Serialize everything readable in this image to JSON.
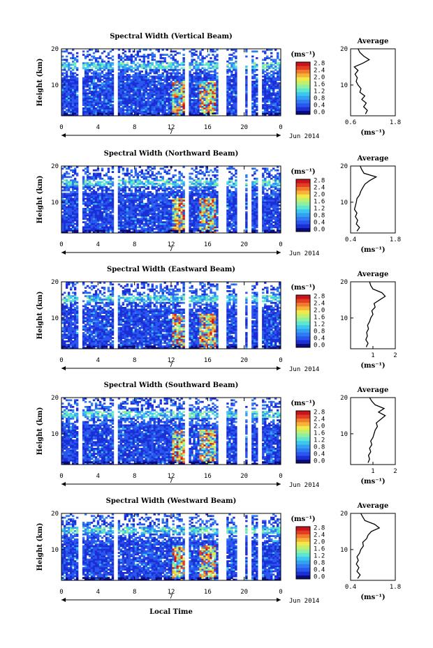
{
  "figure": {
    "xlabel": "Local Time",
    "date_label": "Jun 2014",
    "day_label": "7",
    "cbar_unit": "(ms⁻¹)",
    "avg_title": "Average",
    "avg_xlabel": "(ms⁻¹)",
    "ylabel": "Height (km)"
  },
  "colors": {
    "scale": [
      "#0b0b7a",
      "#1b2fd6",
      "#2a56ee",
      "#2f7bf3",
      "#35a0f2",
      "#3cc7ee",
      "#5ee6d0",
      "#8ef0a0",
      "#c3f06c",
      "#f1e84a",
      "#f7b23a",
      "#f17a2c",
      "#e23e24",
      "#c9141c"
    ]
  },
  "chart_data": [
    {
      "type": "heatmap",
      "title": "Spectral Width (Vertical Beam)",
      "x_ticks": [
        "0",
        "4",
        "8",
        "12",
        "16",
        "20",
        "0"
      ],
      "xlim": [
        0,
        24
      ],
      "y_ticks": [
        "10",
        "20"
      ],
      "ylim": [
        1.5,
        20
      ],
      "cbar_ticks": [
        "0.0",
        "0.4",
        "0.8",
        "1.2",
        "1.6",
        "2.0",
        "2.4",
        "2.8"
      ],
      "gaps_hours": [
        [
          1.9,
          2.3
        ],
        [
          5.7,
          6.1
        ],
        [
          13.6,
          14.0
        ],
        [
          17.1,
          18.0
        ],
        [
          19.2,
          20.0
        ],
        [
          20.4,
          20.7
        ],
        [
          21.6,
          22.0
        ]
      ],
      "hot_hours": [
        [
          12.2,
          13.5
        ],
        [
          15.2,
          16.8
        ]
      ],
      "avg_profile": {
        "xlim": [
          0.6,
          1.8
        ],
        "x_ticks": [
          "0.6",
          "1.8"
        ],
        "height_km": [
          2,
          3,
          4,
          5,
          6,
          7,
          8,
          9,
          10,
          11,
          12,
          13,
          14,
          15,
          16,
          17,
          18,
          19,
          20
        ],
        "values": [
          1.0,
          1.05,
          0.95,
          1.02,
          0.9,
          0.98,
          0.85,
          0.88,
          0.8,
          0.75,
          0.78,
          0.72,
          0.8,
          0.7,
          0.92,
          1.1,
          0.95,
          0.85,
          0.8
        ]
      }
    },
    {
      "type": "heatmap",
      "title": "Spectral Width (Northward Beam)",
      "x_ticks": [
        "0",
        "4",
        "8",
        "12",
        "16",
        "20",
        "0"
      ],
      "xlim": [
        0,
        24
      ],
      "y_ticks": [
        "10",
        "20"
      ],
      "ylim": [
        1.5,
        20
      ],
      "cbar_ticks": [
        "0.0",
        "0.4",
        "0.8",
        "1.2",
        "1.6",
        "2.0",
        "2.4",
        "2.8"
      ],
      "gaps_hours": [
        [
          1.9,
          2.3
        ],
        [
          5.7,
          6.1
        ],
        [
          13.6,
          14.0
        ],
        [
          17.1,
          18.0
        ],
        [
          19.2,
          20.0
        ],
        [
          20.4,
          20.7
        ],
        [
          21.6,
          22.0
        ]
      ],
      "hot_hours": [
        [
          12.2,
          13.5
        ],
        [
          15.2,
          16.8
        ]
      ],
      "avg_profile": {
        "xlim": [
          0.4,
          1.8
        ],
        "x_ticks": [
          "0.4",
          "1.8"
        ],
        "height_km": [
          2,
          3,
          4,
          5,
          6,
          7,
          8,
          9,
          10,
          11,
          12,
          13,
          14,
          15,
          16,
          17,
          18,
          19,
          20
        ],
        "values": [
          0.6,
          0.68,
          0.58,
          0.62,
          0.55,
          0.6,
          0.52,
          0.55,
          0.58,
          0.6,
          0.68,
          0.72,
          0.78,
          0.85,
          1.0,
          1.2,
          0.82,
          0.75,
          0.7
        ]
      }
    },
    {
      "type": "heatmap",
      "title": "Spectral Width (Eastward Beam)",
      "x_ticks": [
        "0",
        "4",
        "8",
        "12",
        "16",
        "20",
        "0"
      ],
      "xlim": [
        0,
        24
      ],
      "y_ticks": [
        "10",
        "20"
      ],
      "ylim": [
        1.5,
        20
      ],
      "cbar_ticks": [
        "0.0",
        "0.4",
        "0.8",
        "1.2",
        "1.6",
        "2.0",
        "2.4",
        "2.8"
      ],
      "gaps_hours": [
        [
          1.9,
          2.3
        ],
        [
          5.7,
          6.1
        ],
        [
          13.6,
          14.0
        ],
        [
          17.1,
          18.0
        ],
        [
          19.2,
          20.0
        ],
        [
          20.4,
          20.7
        ],
        [
          21.6,
          22.0
        ]
      ],
      "hot_hours": [
        [
          12.2,
          13.5
        ],
        [
          15.2,
          16.8
        ]
      ],
      "avg_profile": {
        "xlim": [
          0,
          2
        ],
        "x_ticks": [
          "1",
          "2"
        ],
        "height_km": [
          2,
          3,
          4,
          5,
          6,
          7,
          8,
          9,
          10,
          11,
          12,
          13,
          14,
          15,
          16,
          17,
          18,
          19,
          20
        ],
        "values": [
          0.7,
          0.78,
          0.68,
          0.75,
          0.72,
          0.8,
          0.76,
          0.85,
          0.9,
          1.0,
          0.95,
          1.1,
          1.05,
          1.3,
          1.55,
          1.4,
          1.0,
          0.9,
          0.85
        ]
      }
    },
    {
      "type": "heatmap",
      "title": "Spectral Width (Southward Beam)",
      "x_ticks": [
        "0",
        "4",
        "8",
        "12",
        "16",
        "20",
        "0"
      ],
      "xlim": [
        0,
        24
      ],
      "y_ticks": [
        "10",
        "20"
      ],
      "ylim": [
        1.5,
        20
      ],
      "cbar_ticks": [
        "0.0",
        "0.4",
        "0.8",
        "1.2",
        "1.6",
        "2.0",
        "2.4",
        "2.8"
      ],
      "gaps_hours": [
        [
          1.9,
          2.3
        ],
        [
          5.7,
          6.1
        ],
        [
          13.6,
          14.0
        ],
        [
          17.1,
          18.0
        ],
        [
          19.2,
          20.0
        ],
        [
          20.4,
          20.7
        ],
        [
          21.6,
          22.0
        ]
      ],
      "hot_hours": [
        [
          12.2,
          13.5
        ],
        [
          15.2,
          16.8
        ]
      ],
      "avg_profile": {
        "xlim": [
          0,
          2
        ],
        "x_ticks": [
          "1",
          "2"
        ],
        "height_km": [
          2,
          3,
          4,
          5,
          6,
          7,
          8,
          9,
          10,
          11,
          12,
          13,
          14,
          15,
          16,
          17,
          18,
          19,
          20
        ],
        "values": [
          0.78,
          0.85,
          0.8,
          0.9,
          0.85,
          0.95,
          0.9,
          1.0,
          1.05,
          1.1,
          1.2,
          1.15,
          1.35,
          1.55,
          1.25,
          1.5,
          1.1,
          0.95,
          0.85
        ]
      }
    },
    {
      "type": "heatmap",
      "title": "Spectral Width (Westward Beam)",
      "x_ticks": [
        "0",
        "4",
        "8",
        "12",
        "16",
        "20",
        "0"
      ],
      "xlim": [
        0,
        24
      ],
      "y_ticks": [
        "10",
        "20"
      ],
      "ylim": [
        1.5,
        20
      ],
      "cbar_ticks": [
        "0.0",
        "0.4",
        "0.8",
        "1.2",
        "1.6",
        "2.0",
        "2.4",
        "2.8"
      ],
      "gaps_hours": [
        [
          1.9,
          2.3
        ],
        [
          5.7,
          6.1
        ],
        [
          13.6,
          14.0
        ],
        [
          17.1,
          18.0
        ],
        [
          19.2,
          20.0
        ],
        [
          20.4,
          20.7
        ],
        [
          21.6,
          22.0
        ]
      ],
      "hot_hours": [
        [
          12.2,
          13.5
        ],
        [
          15.2,
          16.8
        ]
      ],
      "avg_profile": {
        "xlim": [
          0.4,
          1.8
        ],
        "x_ticks": [
          "0.4",
          "1.8"
        ],
        "height_km": [
          2,
          3,
          4,
          5,
          6,
          7,
          8,
          9,
          10,
          11,
          12,
          13,
          14,
          15,
          16,
          17,
          18,
          19,
          20
        ],
        "values": [
          0.62,
          0.7,
          0.6,
          0.66,
          0.58,
          0.64,
          0.6,
          0.68,
          0.72,
          0.8,
          0.78,
          0.9,
          0.95,
          1.05,
          1.3,
          1.15,
          0.85,
          0.78,
          0.72
        ]
      }
    }
  ]
}
